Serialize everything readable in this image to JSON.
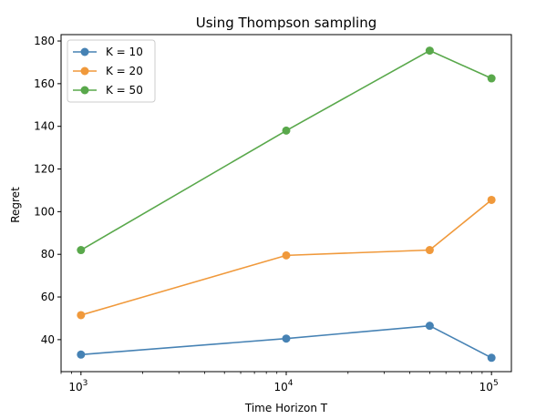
{
  "chart_data": {
    "type": "line",
    "title": "Using Thompson sampling",
    "xlabel": "Time Horizon T",
    "ylabel": "Regret",
    "xscale": "log",
    "x": [
      1000,
      10000,
      50000,
      100000
    ],
    "xlim": [
      800,
      125000
    ],
    "ylim": [
      25,
      183
    ],
    "x_ticks": [
      {
        "value": 1000,
        "base": "10",
        "exp": "3"
      },
      {
        "value": 10000,
        "base": "10",
        "exp": "4"
      },
      {
        "value": 100000,
        "base": "10",
        "exp": "5"
      }
    ],
    "y_ticks": [
      40,
      60,
      80,
      100,
      120,
      140,
      160,
      180
    ],
    "legend_position": "top-left",
    "grid": false,
    "series": [
      {
        "name": "K = 10",
        "color": "#4682b4",
        "values": [
          33,
          40.5,
          46.5,
          31.5
        ]
      },
      {
        "name": "K = 20",
        "color": "#f0993b",
        "values": [
          51.5,
          79.5,
          82,
          105.5
        ]
      },
      {
        "name": "K = 50",
        "color": "#59a84b",
        "values": [
          82,
          138,
          175.5,
          162.5
        ]
      }
    ]
  }
}
